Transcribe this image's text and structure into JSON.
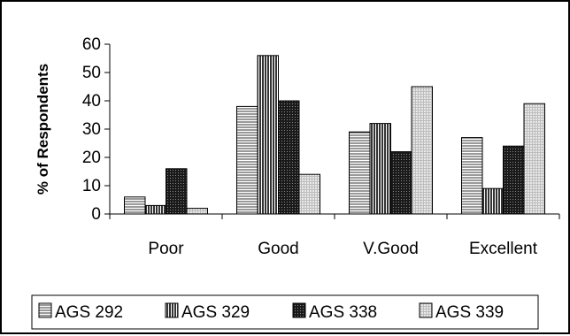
{
  "chart_data": {
    "type": "bar",
    "categories": [
      "Poor",
      "Good",
      "V.Good",
      "Excellent"
    ],
    "series": [
      {
        "name": "AGS 292",
        "values": [
          6,
          38,
          29,
          27
        ],
        "pattern": "horizontal-lines"
      },
      {
        "name": "AGS 329",
        "values": [
          3,
          56,
          32,
          9
        ],
        "pattern": "vertical-lines"
      },
      {
        "name": "AGS 338",
        "values": [
          16,
          40,
          22,
          24
        ],
        "pattern": "dark-crosshatch"
      },
      {
        "name": "AGS 339",
        "values": [
          2,
          14,
          45,
          39
        ],
        "pattern": "light-grid"
      }
    ],
    "title": "",
    "xlabel": "",
    "ylabel": "% of Respondents",
    "ylim": [
      0,
      60
    ],
    "yticks": [
      0,
      10,
      20,
      30,
      40,
      50,
      60
    ],
    "grid": false,
    "legend_position": "bottom"
  }
}
